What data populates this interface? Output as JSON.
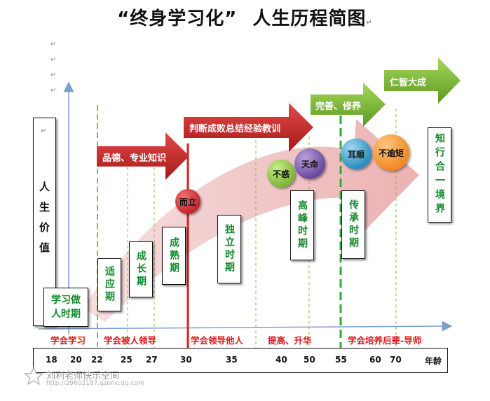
{
  "title": {
    "part1": "“终身学习化”",
    "part2": "人生历程简图"
  },
  "paragraph_mark": "↵",
  "y_axis_label": "人生价值",
  "x_axis_label": "年龄",
  "period_boxes": [
    {
      "id": "learn-person",
      "text": "学习做人时期"
    },
    {
      "id": "adapt",
      "text": "适应期"
    },
    {
      "id": "grow",
      "text": "成长期"
    },
    {
      "id": "mature",
      "text": "成熟期"
    },
    {
      "id": "independent",
      "text": "独立时期"
    },
    {
      "id": "peak",
      "text": "高峰时期"
    },
    {
      "id": "inherit",
      "text": "传承时期"
    },
    {
      "id": "unity",
      "text": "知行合一境界"
    }
  ],
  "arrows": [
    {
      "id": "arrow-1",
      "text": "品德、专业知识"
    },
    {
      "id": "arrow-2",
      "text": "判断成败总结经验教训"
    },
    {
      "id": "arrow-3",
      "text": "完善、修养"
    },
    {
      "id": "arrow-4",
      "text": "仁智大成"
    }
  ],
  "milestones": [
    {
      "id": "erli",
      "text": "而立",
      "color": "#c0282b"
    },
    {
      "id": "buhuo",
      "text": "不惑",
      "color": "#7fb539"
    },
    {
      "id": "tianming",
      "text": "天命",
      "color": "#6b4a9e"
    },
    {
      "id": "ershun",
      "text": "耳顺",
      "color": "#2d8fbf"
    },
    {
      "id": "buyuju",
      "text": "不逾矩",
      "color": "#f08a24"
    }
  ],
  "stages": [
    "学会学习",
    "学会被人领导",
    "学会领导他人",
    "提高、升华",
    "学会培养后辈-导师"
  ],
  "ages": [
    "18",
    "20",
    "22",
    "25",
    "27",
    "30",
    "35",
    "40",
    "50",
    "55",
    "60",
    "70"
  ],
  "watermark": {
    "name": "刘利老师快乐空间",
    "url": "http://29602187.qzone.qq.com"
  }
}
